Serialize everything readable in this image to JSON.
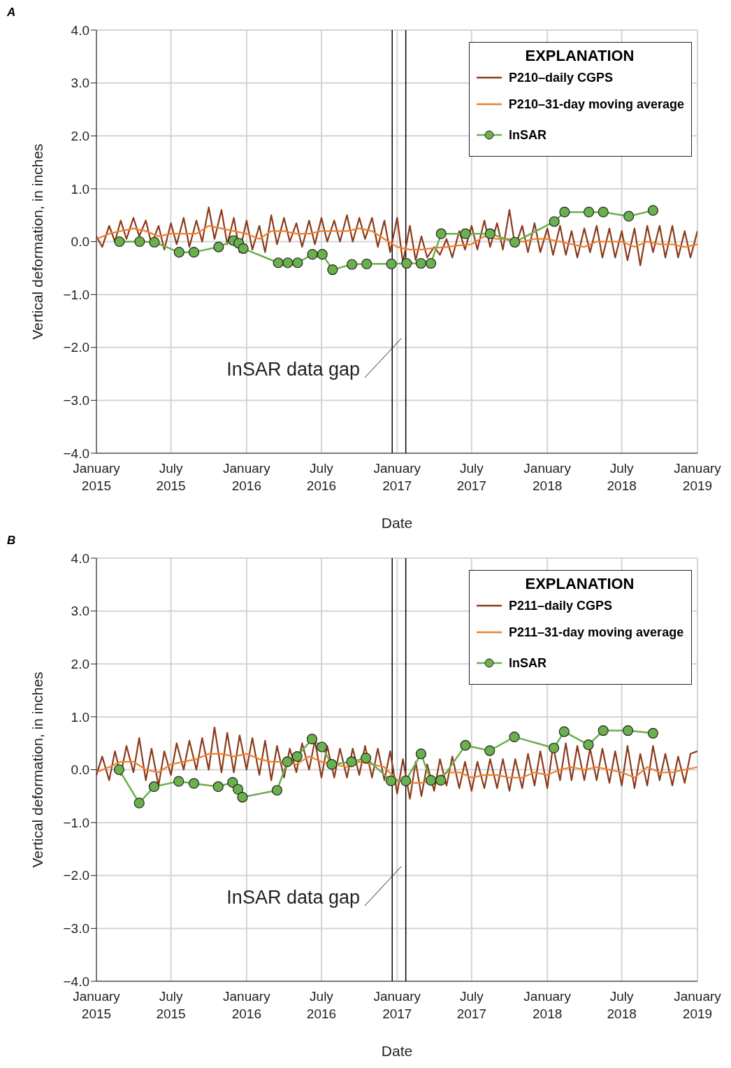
{
  "chart_data": [
    {
      "type": "line",
      "title": "A",
      "xlabel": "Date",
      "ylabel": "Vertical deformation, in inches",
      "legend_title": "EXPLANATION",
      "legend": "top right",
      "grid": true,
      "xlim": [
        "2015-01-01",
        "2019-01-01"
      ],
      "xticks": [
        {
          "value": "2015-01-01",
          "label": "January 2015"
        },
        {
          "value": "2015-07-01",
          "label": "July 2015"
        },
        {
          "value": "2016-01-01",
          "label": "January 2016"
        },
        {
          "value": "2016-07-01",
          "label": "July 2016"
        },
        {
          "value": "2017-01-01",
          "label": "January 2017"
        },
        {
          "value": "2017-07-01",
          "label": "July 2017"
        },
        {
          "value": "2018-01-01",
          "label": "January 2018"
        },
        {
          "value": "2018-07-01",
          "label": "July 2018"
        },
        {
          "value": "2019-01-01",
          "label": "January 2019"
        }
      ],
      "ylim": [
        -4,
        4
      ],
      "yticks": [
        {
          "value": -4,
          "label": "−4.0"
        },
        {
          "value": -3,
          "label": "−3.0"
        },
        {
          "value": -2,
          "label": "−2.0"
        },
        {
          "value": -1,
          "label": "−1.0"
        },
        {
          "value": 0,
          "label": "0.0"
        },
        {
          "value": 1,
          "label": "1.0"
        },
        {
          "value": 2,
          "label": "2.0"
        },
        {
          "value": 3,
          "label": "3.0"
        },
        {
          "value": 4,
          "label": "4.0"
        }
      ],
      "ref_lines": [
        {
          "axis": "x",
          "value": "2016-12-20",
          "color": "#000000"
        },
        {
          "axis": "x",
          "value": "2017-01-22",
          "color": "#000000"
        }
      ],
      "annotations": [
        "InSAR data gap"
      ],
      "series": [
        {
          "name": "P210–daily CGPS",
          "color": "#8b3a1a",
          "marker": "none",
          "x": [
            "2015-01-01",
            "2015-01-15",
            "2015-02-01",
            "2015-02-15",
            "2015-03-01",
            "2015-03-15",
            "2015-04-01",
            "2015-04-15",
            "2015-05-01",
            "2015-05-15",
            "2015-06-01",
            "2015-06-15",
            "2015-07-01",
            "2015-07-15",
            "2015-08-01",
            "2015-08-15",
            "2015-09-01",
            "2015-09-15",
            "2015-10-01",
            "2015-10-15",
            "2015-11-01",
            "2015-11-15",
            "2015-12-01",
            "2015-12-15",
            "2016-01-01",
            "2016-01-15",
            "2016-02-01",
            "2016-02-15",
            "2016-03-01",
            "2016-03-15",
            "2016-04-01",
            "2016-04-15",
            "2016-05-01",
            "2016-05-15",
            "2016-06-01",
            "2016-06-15",
            "2016-07-01",
            "2016-07-15",
            "2016-08-01",
            "2016-08-15",
            "2016-09-01",
            "2016-09-15",
            "2016-10-01",
            "2016-10-15",
            "2016-11-01",
            "2016-11-15",
            "2016-12-01",
            "2016-12-15",
            "2017-01-01",
            "2017-01-15",
            "2017-02-01",
            "2017-02-15",
            "2017-03-01",
            "2017-03-15",
            "2017-04-01",
            "2017-04-15",
            "2017-05-01",
            "2017-05-15",
            "2017-06-01",
            "2017-06-15",
            "2017-07-01",
            "2017-07-15",
            "2017-08-01",
            "2017-08-15",
            "2017-09-01",
            "2017-09-15",
            "2017-10-01",
            "2017-10-15",
            "2017-11-01",
            "2017-11-15",
            "2017-12-01",
            "2017-12-15",
            "2018-01-01",
            "2018-01-15",
            "2018-02-01",
            "2018-02-15",
            "2018-03-01",
            "2018-03-15",
            "2018-04-01",
            "2018-04-15",
            "2018-05-01",
            "2018-05-15",
            "2018-06-01",
            "2018-06-15",
            "2018-07-01",
            "2018-07-15",
            "2018-08-01",
            "2018-08-15",
            "2018-09-01",
            "2018-09-15",
            "2018-10-01",
            "2018-10-15",
            "2018-11-01",
            "2018-11-15",
            "2018-12-01",
            "2018-12-15",
            "2019-01-01"
          ],
          "values": [
            0.1,
            -0.1,
            0.3,
            0.0,
            0.4,
            0.05,
            0.45,
            0.1,
            0.4,
            -0.05,
            0.3,
            -0.15,
            0.35,
            -0.05,
            0.45,
            -0.1,
            0.4,
            0.0,
            0.65,
            0.05,
            0.6,
            -0.05,
            0.45,
            -0.2,
            0.4,
            -0.15,
            0.3,
            -0.2,
            0.5,
            -0.05,
            0.45,
            0.0,
            0.35,
            -0.1,
            0.4,
            -0.05,
            0.45,
            0.0,
            0.4,
            0.0,
            0.5,
            0.0,
            0.45,
            0.05,
            0.45,
            -0.1,
            0.4,
            -0.2,
            0.45,
            -0.4,
            0.3,
            -0.35,
            0.1,
            -0.3,
            -0.1,
            -0.25,
            0.05,
            -0.3,
            0.2,
            -0.15,
            0.3,
            -0.15,
            0.4,
            -0.1,
            0.35,
            -0.15,
            0.6,
            -0.1,
            0.3,
            -0.2,
            0.35,
            -0.2,
            0.25,
            -0.25,
            0.3,
            -0.25,
            0.2,
            -0.3,
            0.25,
            -0.2,
            0.3,
            -0.3,
            0.25,
            -0.3,
            0.2,
            -0.35,
            0.25,
            -0.45,
            0.3,
            -0.2,
            0.3,
            -0.3,
            0.3,
            -0.3,
            0.2,
            -0.3,
            0.2
          ]
        },
        {
          "name": "P210–31-day moving average",
          "color": "#f07f2a",
          "marker": "none",
          "x": [
            "2015-01-01",
            "2015-02-01",
            "2015-03-01",
            "2015-04-01",
            "2015-05-01",
            "2015-06-01",
            "2015-07-01",
            "2015-08-01",
            "2015-09-01",
            "2015-10-01",
            "2015-11-01",
            "2015-12-01",
            "2016-01-01",
            "2016-02-01",
            "2016-03-01",
            "2016-04-01",
            "2016-05-01",
            "2016-06-01",
            "2016-07-01",
            "2016-08-01",
            "2016-09-01",
            "2016-10-01",
            "2016-11-01",
            "2016-12-01",
            "2017-01-01",
            "2017-02-01",
            "2017-03-01",
            "2017-04-01",
            "2017-05-01",
            "2017-06-01",
            "2017-07-01",
            "2017-08-01",
            "2017-09-01",
            "2017-10-01",
            "2017-11-01",
            "2017-12-01",
            "2018-01-01",
            "2018-02-01",
            "2018-03-01",
            "2018-04-01",
            "2018-05-01",
            "2018-06-01",
            "2018-07-01",
            "2018-08-01",
            "2018-09-01",
            "2018-10-01",
            "2018-11-01",
            "2018-12-01",
            "2019-01-01"
          ],
          "values": [
            0.05,
            0.15,
            0.2,
            0.25,
            0.2,
            0.1,
            0.15,
            0.15,
            0.15,
            0.3,
            0.25,
            0.2,
            0.15,
            0.05,
            0.2,
            0.2,
            0.15,
            0.15,
            0.2,
            0.2,
            0.2,
            0.25,
            0.2,
            0.05,
            -0.1,
            -0.15,
            -0.15,
            -0.12,
            -0.1,
            -0.07,
            -0.05,
            0.1,
            0.05,
            0.05,
            0.0,
            0.05,
            0.05,
            0.0,
            -0.05,
            -0.1,
            0.0,
            0.0,
            0.0,
            -0.1,
            0.0,
            -0.05,
            -0.05,
            -0.1,
            -0.05
          ]
        },
        {
          "name": "InSAR",
          "color": "#6ab04c",
          "marker": "circle",
          "x": [
            "2015-02-26",
            "2015-04-16",
            "2015-05-22",
            "2015-07-21",
            "2015-08-26",
            "2015-10-25",
            "2015-11-30",
            "2015-12-13",
            "2015-12-24",
            "2016-03-18",
            "2016-04-10",
            "2016-05-04",
            "2016-06-09",
            "2016-07-03",
            "2016-07-28",
            "2016-09-13",
            "2016-10-19",
            "2016-12-18",
            "2017-01-24",
            "2017-02-28",
            "2017-03-24",
            "2017-04-18",
            "2017-06-16",
            "2017-08-15",
            "2017-10-14",
            "2018-01-18",
            "2018-02-12",
            "2018-04-12",
            "2018-05-17",
            "2018-07-18",
            "2018-09-15"
          ],
          "values": [
            0.0,
            0.0,
            -0.01,
            -0.2,
            -0.2,
            -0.1,
            0.02,
            -0.03,
            -0.13,
            -0.4,
            -0.4,
            -0.4,
            -0.24,
            -0.24,
            -0.53,
            -0.43,
            -0.42,
            -0.42,
            -0.41,
            -0.41,
            -0.41,
            0.15,
            0.15,
            0.15,
            -0.01,
            0.38,
            0.56,
            0.56,
            0.56,
            0.48,
            0.59
          ]
        }
      ]
    },
    {
      "type": "line",
      "title": "B",
      "xlabel": "Date",
      "ylabel": "Vertical deformation, in inches",
      "legend_title": "EXPLANATION",
      "legend": "top right",
      "grid": true,
      "xlim": [
        "2015-01-01",
        "2019-01-01"
      ],
      "xticks": [
        {
          "value": "2015-01-01",
          "label": "January 2015"
        },
        {
          "value": "2015-07-01",
          "label": "July 2015"
        },
        {
          "value": "2016-01-01",
          "label": "January 2016"
        },
        {
          "value": "2016-07-01",
          "label": "July 2016"
        },
        {
          "value": "2017-01-01",
          "label": "January 2017"
        },
        {
          "value": "2017-07-01",
          "label": "July 2017"
        },
        {
          "value": "2018-01-01",
          "label": "January 2018"
        },
        {
          "value": "2018-07-01",
          "label": "July 2018"
        },
        {
          "value": "2019-01-01",
          "label": "January 2019"
        }
      ],
      "ylim": [
        -4,
        4
      ],
      "yticks": [
        {
          "value": -4,
          "label": "−4.0"
        },
        {
          "value": -3,
          "label": "−3.0"
        },
        {
          "value": -2,
          "label": "−2.0"
        },
        {
          "value": -1,
          "label": "−1.0"
        },
        {
          "value": 0,
          "label": "0.0"
        },
        {
          "value": 1,
          "label": "1.0"
        },
        {
          "value": 2,
          "label": "2.0"
        },
        {
          "value": 3,
          "label": "3.0"
        },
        {
          "value": 4,
          "label": "4.0"
        }
      ],
      "ref_lines": [
        {
          "axis": "x",
          "value": "2016-12-20",
          "color": "#000000"
        },
        {
          "axis": "x",
          "value": "2017-01-22",
          "color": "#000000"
        }
      ],
      "annotations": [
        "InSAR data gap"
      ],
      "series": [
        {
          "name": "P211–daily CGPS",
          "color": "#8b3a1a",
          "marker": "none",
          "x": [
            "2015-01-01",
            "2015-01-15",
            "2015-02-01",
            "2015-02-15",
            "2015-03-01",
            "2015-03-15",
            "2015-04-01",
            "2015-04-15",
            "2015-05-01",
            "2015-05-15",
            "2015-06-01",
            "2015-06-15",
            "2015-07-01",
            "2015-07-15",
            "2015-08-01",
            "2015-08-15",
            "2015-09-01",
            "2015-09-15",
            "2015-10-01",
            "2015-10-15",
            "2015-11-01",
            "2015-11-15",
            "2015-12-01",
            "2015-12-15",
            "2016-01-01",
            "2016-01-15",
            "2016-02-01",
            "2016-02-15",
            "2016-03-01",
            "2016-03-15",
            "2016-04-01",
            "2016-04-15",
            "2016-05-01",
            "2016-05-15",
            "2016-06-01",
            "2016-06-15",
            "2016-07-01",
            "2016-07-15",
            "2016-08-01",
            "2016-08-15",
            "2016-09-01",
            "2016-09-15",
            "2016-10-01",
            "2016-10-15",
            "2016-11-01",
            "2016-11-15",
            "2016-12-01",
            "2016-12-15",
            "2017-01-01",
            "2017-01-15",
            "2017-02-01",
            "2017-02-15",
            "2017-03-01",
            "2017-03-15",
            "2017-04-01",
            "2017-04-15",
            "2017-05-01",
            "2017-05-15",
            "2017-06-01",
            "2017-06-15",
            "2017-07-01",
            "2017-07-15",
            "2017-08-01",
            "2017-08-15",
            "2017-09-01",
            "2017-09-15",
            "2017-10-01",
            "2017-10-15",
            "2017-11-01",
            "2017-11-15",
            "2017-12-01",
            "2017-12-15",
            "2018-01-01",
            "2018-01-15",
            "2018-02-01",
            "2018-02-15",
            "2018-03-01",
            "2018-03-15",
            "2018-04-01",
            "2018-04-15",
            "2018-05-01",
            "2018-05-15",
            "2018-06-01",
            "2018-06-15",
            "2018-07-01",
            "2018-07-15",
            "2018-08-01",
            "2018-08-15",
            "2018-09-01",
            "2018-09-15",
            "2018-10-01",
            "2018-10-15",
            "2018-11-01",
            "2018-11-15",
            "2018-12-01",
            "2018-12-15",
            "2019-01-01"
          ],
          "values": [
            -0.1,
            0.25,
            -0.2,
            0.35,
            -0.1,
            0.45,
            -0.05,
            0.6,
            -0.2,
            0.4,
            -0.3,
            0.35,
            -0.1,
            0.5,
            0.0,
            0.55,
            0.0,
            0.6,
            0.0,
            0.8,
            -0.05,
            0.7,
            -0.05,
            0.65,
            0.0,
            0.6,
            -0.1,
            0.55,
            -0.2,
            0.45,
            -0.15,
            0.4,
            -0.05,
            0.5,
            0.0,
            0.55,
            -0.15,
            0.45,
            -0.15,
            0.4,
            -0.15,
            0.4,
            -0.1,
            0.45,
            -0.15,
            0.4,
            -0.2,
            0.35,
            -0.45,
            0.2,
            -0.55,
            0.15,
            -0.5,
            0.1,
            -0.4,
            0.2,
            -0.3,
            0.25,
            -0.35,
            0.15,
            -0.4,
            0.15,
            -0.35,
            0.2,
            -0.35,
            0.2,
            -0.4,
            0.2,
            -0.35,
            0.3,
            -0.3,
            0.35,
            -0.35,
            0.45,
            -0.2,
            0.5,
            -0.2,
            0.45,
            -0.2,
            0.4,
            -0.2,
            0.4,
            -0.25,
            0.35,
            -0.3,
            0.45,
            -0.35,
            0.3,
            -0.3,
            0.45,
            -0.2,
            0.3,
            -0.3,
            0.25,
            -0.25,
            0.3,
            0.35
          ]
        },
        {
          "name": "P211–31-day moving average",
          "color": "#f07f2a",
          "marker": "none",
          "x": [
            "2015-01-01",
            "2015-02-01",
            "2015-03-01",
            "2015-04-01",
            "2015-05-01",
            "2015-06-01",
            "2015-07-01",
            "2015-08-01",
            "2015-09-01",
            "2015-10-01",
            "2015-11-01",
            "2015-12-01",
            "2016-01-01",
            "2016-02-01",
            "2016-03-01",
            "2016-04-01",
            "2016-05-01",
            "2016-06-01",
            "2016-07-01",
            "2016-08-01",
            "2016-09-01",
            "2016-10-01",
            "2016-11-01",
            "2016-12-01",
            "2017-01-01",
            "2017-02-01",
            "2017-03-01",
            "2017-04-01",
            "2017-05-01",
            "2017-06-01",
            "2017-07-01",
            "2017-08-01",
            "2017-09-01",
            "2017-10-01",
            "2017-11-01",
            "2017-12-01",
            "2018-01-01",
            "2018-02-01",
            "2018-03-01",
            "2018-04-01",
            "2018-05-01",
            "2018-06-01",
            "2018-07-01",
            "2018-08-01",
            "2018-09-01",
            "2018-10-01",
            "2018-11-01",
            "2018-12-01",
            "2019-01-01"
          ],
          "values": [
            -0.05,
            0.05,
            0.15,
            0.15,
            0.0,
            -0.05,
            0.1,
            0.15,
            0.2,
            0.3,
            0.3,
            0.25,
            0.3,
            0.2,
            0.15,
            0.15,
            0.1,
            0.25,
            0.15,
            0.1,
            0.05,
            0.15,
            0.1,
            0.05,
            -0.2,
            -0.25,
            -0.25,
            -0.2,
            -0.05,
            -0.05,
            -0.15,
            -0.1,
            -0.1,
            -0.15,
            -0.15,
            -0.05,
            -0.1,
            0.0,
            0.05,
            0.0,
            0.05,
            0.0,
            -0.05,
            -0.15,
            0.05,
            -0.05,
            -0.05,
            0.0,
            0.05
          ]
        },
        {
          "name": "InSAR",
          "color": "#6ab04c",
          "marker": "circle",
          "x": [
            "2015-02-25",
            "2015-04-15",
            "2015-05-21",
            "2015-07-20",
            "2015-08-26",
            "2015-10-24",
            "2015-11-28",
            "2015-12-11",
            "2015-12-22",
            "2016-03-15",
            "2016-04-09",
            "2016-05-03",
            "2016-06-08",
            "2016-07-02",
            "2016-07-26",
            "2016-09-12",
            "2016-10-17",
            "2016-12-17",
            "2017-01-22",
            "2017-02-28",
            "2017-03-24",
            "2017-04-17",
            "2017-06-16",
            "2017-08-14",
            "2017-10-13",
            "2018-01-17",
            "2018-02-11",
            "2018-04-11",
            "2018-05-17",
            "2018-07-16",
            "2018-09-15"
          ],
          "values": [
            0.0,
            -0.63,
            -0.32,
            -0.22,
            -0.26,
            -0.32,
            -0.24,
            -0.37,
            -0.52,
            -0.39,
            0.15,
            0.25,
            0.58,
            0.43,
            0.1,
            0.15,
            0.22,
            -0.21,
            -0.21,
            0.3,
            -0.2,
            -0.2,
            0.46,
            0.36,
            0.62,
            0.41,
            0.72,
            0.47,
            0.74,
            0.74,
            0.69
          ]
        }
      ]
    }
  ]
}
